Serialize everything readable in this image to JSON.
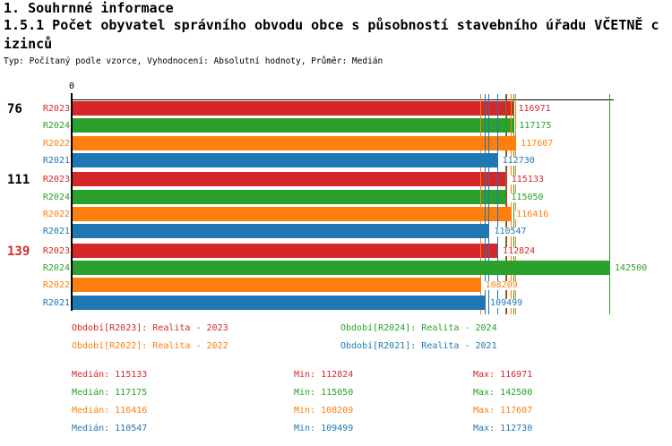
{
  "header": {
    "section_title": "1. Souhrnné informace",
    "indicator_title_line1": "1.5.1 Počet obyvatel správního obvodu obce s působností stavebního úřadu VČETNĚ c",
    "indicator_title_line2": "izinců",
    "meta_line": "Typ: Počítaný podle vzorce, Vyhodnocení: Absolutní hodnoty, Průměr: Medián"
  },
  "chart_data": {
    "type": "bar",
    "orientation": "horizontal",
    "title": "1.5.1 Počet obyvatel správního obvodu obce s působností stavebního úřadu VČETNĚ cizinců",
    "average_method": "Medián",
    "x_axis": {
      "origin_label": "0",
      "min": 0,
      "max": 143500,
      "gridlines": false
    },
    "groups": [
      {
        "label": "76",
        "label_color": "#000000"
      },
      {
        "label": "111",
        "label_color": "#000000"
      },
      {
        "label": "139",
        "label_color": "#d62728"
      }
    ],
    "series": [
      {
        "name": "R2023",
        "color": "#d62728",
        "legend_label": "Období[R2023]: Realita - 2023",
        "values": [
          116971,
          115133,
          112824
        ],
        "median": 115133,
        "min": 112824,
        "max": 116971
      },
      {
        "name": "R2024",
        "color": "#2ca02c",
        "legend_label": "Období[R2024]: Realita - 2024",
        "values": [
          117175,
          115050,
          142500
        ],
        "median": 117175,
        "min": 115050,
        "max": 142500
      },
      {
        "name": "R2022",
        "color": "#ff7f0e",
        "legend_label": "Období[R2022]: Realita - 2022",
        "values": [
          117607,
          116416,
          108209
        ],
        "median": 116416,
        "min": 108209,
        "max": 117607
      },
      {
        "name": "R2021",
        "color": "#1f77b4",
        "legend_label": "Období[R2021]: Realita - 2021",
        "values": [
          112730,
          110547,
          109499
        ],
        "median": 110547,
        "min": 109499,
        "max": 112730
      }
    ],
    "layout_hints": {
      "bars_per_group_top_to_bottom": [
        "R2023",
        "R2024",
        "R2022",
        "R2021"
      ],
      "marker_lines": "vertical line per series at min, median and max",
      "legend_position": "below chart, two columns",
      "value_labels": "at bar ends, series color"
    }
  },
  "stats": {
    "median_label": "Medián",
    "min_label": "Min",
    "max_label": "Max"
  }
}
